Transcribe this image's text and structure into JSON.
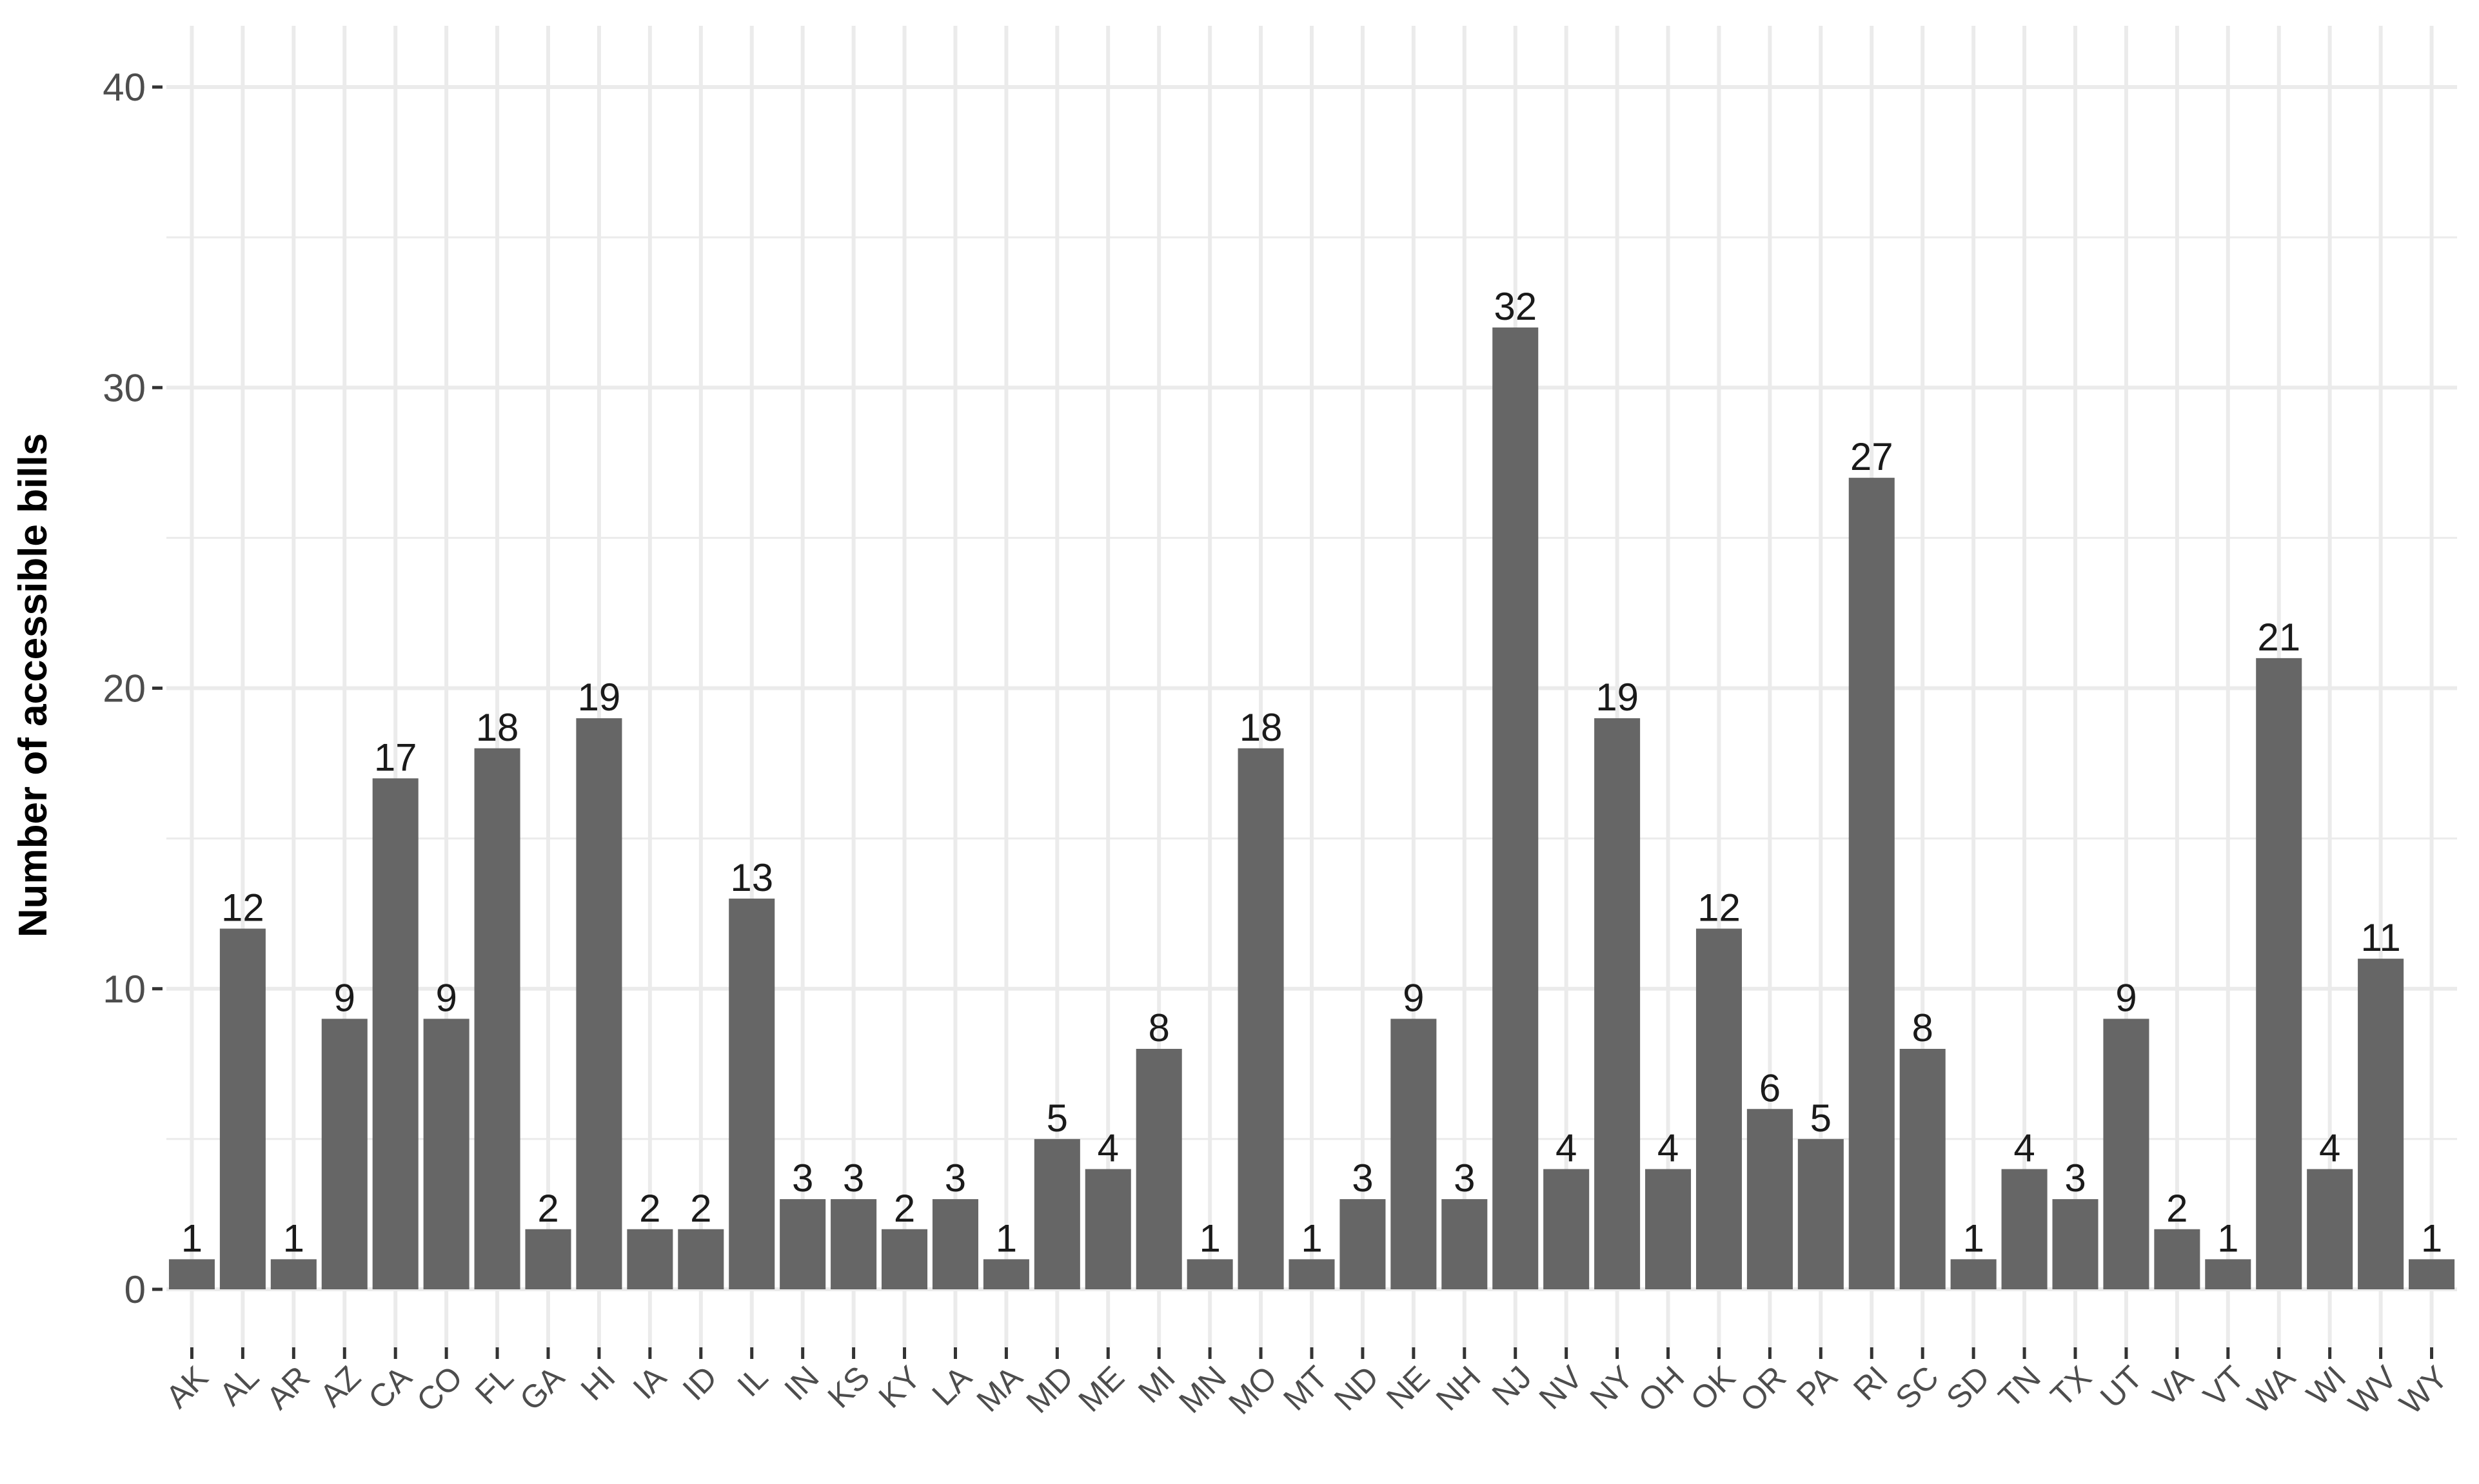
{
  "chart_data": {
    "type": "bar",
    "title": "",
    "xlabel": "",
    "ylabel": "Number of accessible bills",
    "categories": [
      "AK",
      "AL",
      "AR",
      "AZ",
      "CA",
      "CO",
      "FL",
      "GA",
      "HI",
      "IA",
      "ID",
      "IL",
      "IN",
      "KS",
      "KY",
      "LA",
      "MA",
      "MD",
      "ME",
      "MI",
      "MN",
      "MO",
      "MT",
      "ND",
      "NE",
      "NH",
      "NJ",
      "NV",
      "NY",
      "OH",
      "OK",
      "OR",
      "PA",
      "RI",
      "SC",
      "SD",
      "TN",
      "TX",
      "UT",
      "VA",
      "VT",
      "WA",
      "WI",
      "WV",
      "WY"
    ],
    "values": [
      1,
      12,
      1,
      9,
      17,
      9,
      18,
      2,
      19,
      2,
      2,
      13,
      3,
      3,
      2,
      3,
      1,
      5,
      4,
      8,
      1,
      18,
      1,
      3,
      9,
      3,
      32,
      4,
      19,
      4,
      12,
      6,
      5,
      27,
      8,
      1,
      4,
      3,
      9,
      2,
      1,
      21,
      4,
      11,
      1
    ],
    "ylim": [
      0,
      40
    ],
    "yticks": [
      0,
      10,
      20,
      30,
      40
    ],
    "grid": true,
    "legend": "none",
    "bar_color": "#666666",
    "grid_color": "#ebebeb",
    "background": "#ffffff"
  }
}
